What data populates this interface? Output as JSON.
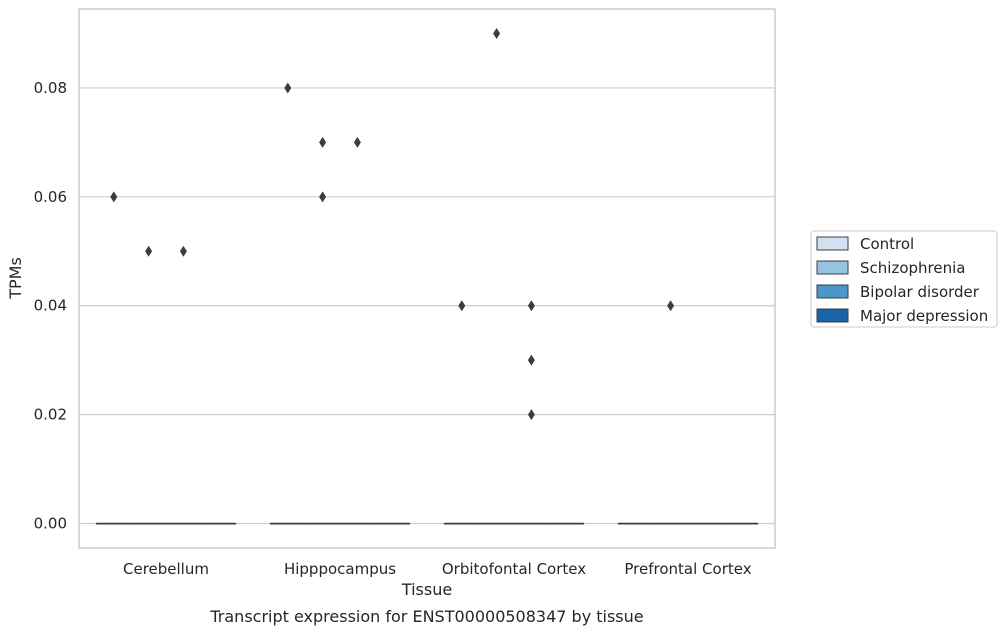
{
  "chart_data": {
    "type": "box",
    "xlabel": "Tissue",
    "ylabel": "TPMs",
    "caption": "Transcript expression for ENST00000508347 by tissue",
    "categories": [
      "Cerebellum",
      "Hipppocampus",
      "Orbitofontal Cortex",
      "Prefrontal Cortex"
    ],
    "ylim": [
      -0.0045,
      0.0945
    ],
    "yticks": [
      0.0,
      0.02,
      0.04,
      0.06,
      0.08
    ],
    "ytick_labels": [
      "0.00",
      "0.02",
      "0.04",
      "0.06",
      "0.08"
    ],
    "grid": true,
    "legend_position": "right",
    "series": [
      {
        "name": "Control",
        "color": "#d0e1f2",
        "boxes": [
          {
            "median": 0,
            "q1": 0,
            "q3": 0
          },
          {
            "median": 0,
            "q1": 0,
            "q3": 0
          },
          {
            "median": 0,
            "q1": 0,
            "q3": 0
          },
          {
            "median": 0,
            "q1": 0,
            "q3": 0
          }
        ],
        "outliers": [
          [
            0.06
          ],
          [
            0.08
          ],
          [
            0.04
          ],
          []
        ]
      },
      {
        "name": "Schizophrenia",
        "color": "#94c4df",
        "boxes": [
          {
            "median": 0,
            "q1": 0,
            "q3": 0
          },
          {
            "median": 0,
            "q1": 0,
            "q3": 0
          },
          {
            "median": 0,
            "q1": 0,
            "q3": 0
          },
          {
            "median": 0,
            "q1": 0,
            "q3": 0
          }
        ],
        "outliers": [
          [
            0.05
          ],
          [
            0.07,
            0.06
          ],
          [
            0.09
          ],
          [
            0.04
          ]
        ]
      },
      {
        "name": "Bipolar disorder",
        "color": "#4a98c9",
        "boxes": [
          {
            "median": 0,
            "q1": 0,
            "q3": 0
          },
          {
            "median": 0,
            "q1": 0,
            "q3": 0
          },
          {
            "median": 0,
            "q1": 0,
            "q3": 0
          },
          {
            "median": 0,
            "q1": 0,
            "q3": 0
          }
        ],
        "outliers": [
          [
            0.05
          ],
          [
            0.07
          ],
          [
            0.04,
            0.03,
            0.02
          ],
          []
        ]
      },
      {
        "name": "Major depression",
        "color": "#1764ab",
        "boxes": [
          {
            "median": 0,
            "q1": 0,
            "q3": 0
          },
          {
            "median": 0,
            "q1": 0,
            "q3": 0
          },
          {
            "median": 0,
            "q1": 0,
            "q3": 0
          },
          {
            "median": 0,
            "q1": 0,
            "q3": 0
          }
        ],
        "outliers": [
          [],
          [],
          [],
          []
        ]
      }
    ]
  }
}
